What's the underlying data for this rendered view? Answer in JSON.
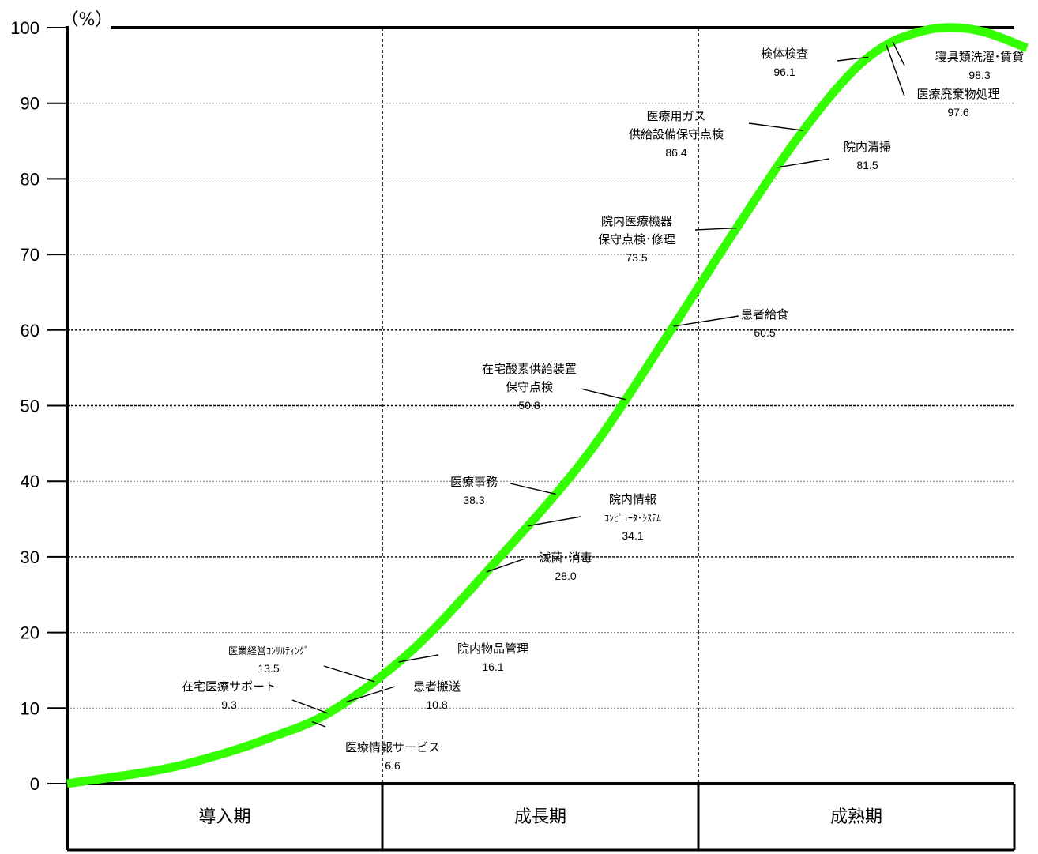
{
  "chart_data": {
    "type": "line",
    "unit_label": "（%）",
    "ylim": [
      0,
      100
    ],
    "y_ticks": [
      "0",
      "10",
      "20",
      "30",
      "40",
      "50",
      "60",
      "70",
      "80",
      "90",
      "100"
    ],
    "grid": true,
    "phases": [
      "導入期",
      "成長期",
      "成熟期"
    ],
    "curve_color": "#33ff00",
    "annotations": [
      {
        "name": "医療情報サービス",
        "lines": [
          "医療情報サービス"
        ],
        "value": "6.6",
        "y": 6.6
      },
      {
        "name": "在宅医療サポート",
        "lines": [
          "在宅医療サポート"
        ],
        "value": "9.3",
        "y": 9.3
      },
      {
        "name": "患者搬送",
        "lines": [
          "患者搬送"
        ],
        "value": "10.8",
        "y": 10.8
      },
      {
        "name": "医業経営コンサルティング",
        "lines": [
          "医業経営ｺﾝｻﾙﾃｨﾝｸﾞ"
        ],
        "value": "13.5",
        "y": 13.5
      },
      {
        "name": "院内物品管理",
        "lines": [
          "院内物品管理"
        ],
        "value": "16.1",
        "y": 16.1
      },
      {
        "name": "滅菌・消毒",
        "lines": [
          "滅菌･消毒"
        ],
        "value": "28.0",
        "y": 28.0
      },
      {
        "name": "院内情報コンピュータ・システム",
        "lines": [
          "院内情報",
          "ｺﾝﾋﾟｭｰﾀ･ｼｽﾃﾑ"
        ],
        "value": "34.1",
        "y": 34.1
      },
      {
        "name": "医療事務",
        "lines": [
          "医療事務"
        ],
        "value": "38.3",
        "y": 38.3
      },
      {
        "name": "在宅酸素供給装置保守点検",
        "lines": [
          "在宅酸素供給装置",
          "保守点検"
        ],
        "value": "50.8",
        "y": 50.8
      },
      {
        "name": "患者給食",
        "lines": [
          "患者給食"
        ],
        "value": "60.5",
        "y": 60.5
      },
      {
        "name": "院内医療機器保守点検・修理",
        "lines": [
          "院内医療機器",
          "保守点検･修理"
        ],
        "value": "73.5",
        "y": 73.5
      },
      {
        "name": "院内清掃",
        "lines": [
          "院内清掃"
        ],
        "value": "81.5",
        "y": 81.5
      },
      {
        "name": "医療用ガス供給設備保守点検",
        "lines": [
          "医療用ガス",
          "供給設備保守点検"
        ],
        "value": "86.4",
        "y": 86.4
      },
      {
        "name": "検体検査",
        "lines": [
          "検体検査"
        ],
        "value": "96.1",
        "y": 96.1
      },
      {
        "name": "医療廃棄物処理",
        "lines": [
          "医療廃棄物処理"
        ],
        "value": "97.6",
        "y": 97.6
      },
      {
        "name": "寝具類洗濯・賃貸",
        "lines": [
          "寝具類洗濯･賃貸"
        ],
        "value": "98.3",
        "y": 98.3
      }
    ]
  }
}
